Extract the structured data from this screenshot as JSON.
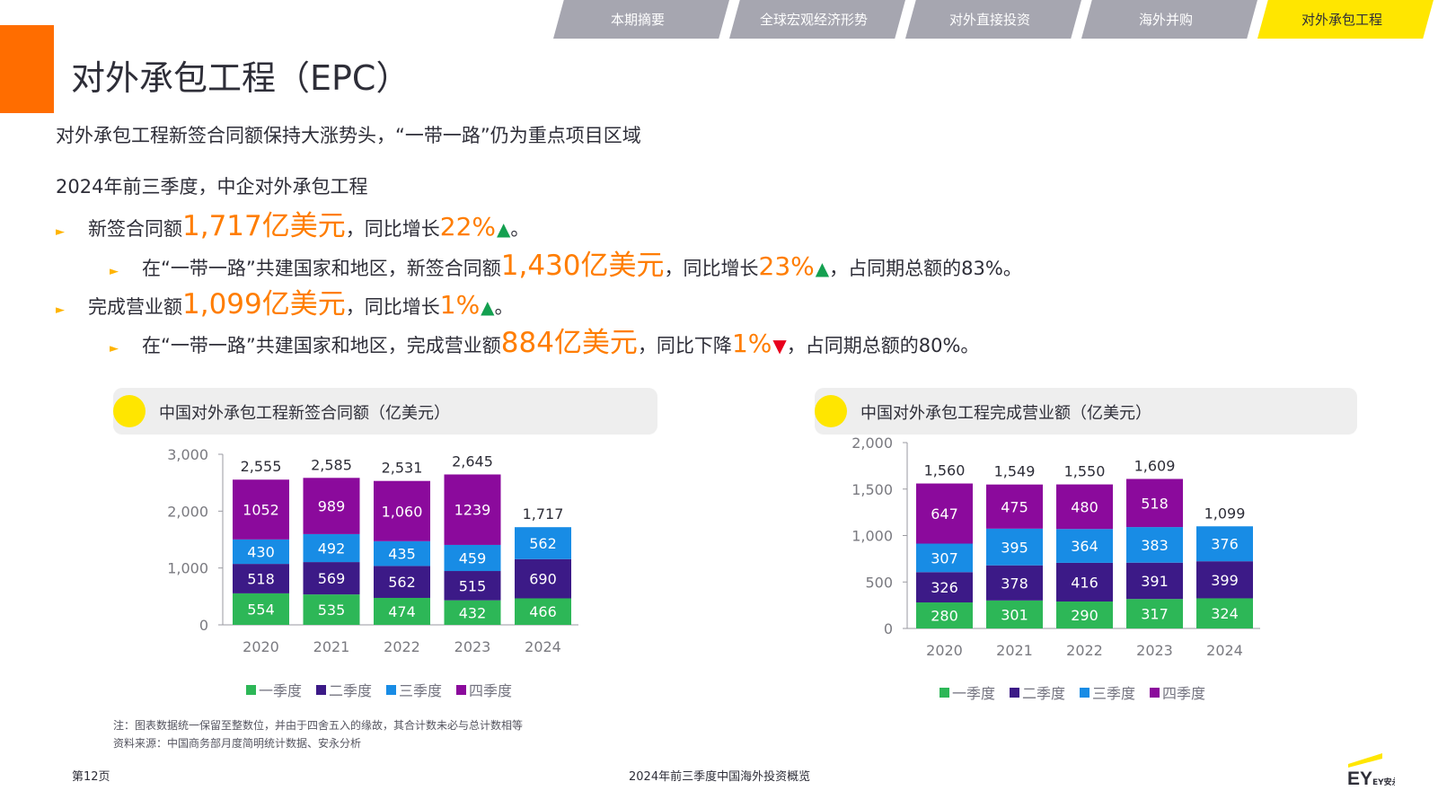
{
  "nav": {
    "tabs": [
      {
        "label": "本期摘要",
        "active": false
      },
      {
        "label": "全球宏观经济形势",
        "active": false
      },
      {
        "label": "对外直接投资",
        "active": false
      },
      {
        "label": "海外并购",
        "active": false
      },
      {
        "label": "对外承包工程",
        "active": true
      }
    ]
  },
  "page": {
    "title": "对外承包工程（EPC）",
    "headline": "对外承包工程新签合同额保持大涨势头，“一带一路”仍为重点项目区域",
    "intro": "2024年前三季度，中企对外承包工程"
  },
  "bullets": [
    {
      "mark": "►",
      "t1": "新签合同额",
      "big": "1,717",
      "unit": "亿美元",
      "t2": "，同比增长",
      "pct": "22%",
      "arrow": "▲",
      "t3": "。"
    },
    {
      "mark": "►",
      "t1": "在“一带一路”共建国家和地区，新签合同额",
      "big": "1,430",
      "unit": "亿美元",
      "t2": "，同比增长",
      "pct": "23%",
      "arrow": "▲",
      "t3": "，占同期总额的83%。"
    },
    {
      "mark": "►",
      "t1": "完成营业额",
      "big": "1,099",
      "unit": "亿美元",
      "t2": "，同比增长",
      "pct": "1%",
      "arrow": "▲",
      "t3": "。"
    },
    {
      "mark": "►",
      "t1": "在“一带一路”共建国家和地区，完成营业额",
      "big": "884",
      "unit": "亿美元",
      "t2": "，同比下降",
      "pct": "1%",
      "arrow": "▼",
      "t3": "，占同期总额的80%。"
    }
  ],
  "colors": {
    "q1": "#2db757",
    "q2": "#3c1a87",
    "q3": "#188ce5",
    "q4": "#8b0a9c",
    "accent_orange": "#ff7d00",
    "ey_yellow": "#ffe600"
  },
  "chart_data": [
    {
      "type": "bar",
      "stacked": true,
      "title": "中国对外承包工程新签合同额（亿美元）",
      "categories": [
        "2020",
        "2021",
        "2022",
        "2023",
        "2024"
      ],
      "series": [
        {
          "name": "一季度",
          "values": [
            554,
            535,
            474,
            432,
            466
          ],
          "labels": [
            "554",
            "535",
            "474",
            "432",
            "466"
          ]
        },
        {
          "name": "二季度",
          "values": [
            518,
            569,
            562,
            515,
            690
          ],
          "labels": [
            "518",
            "569",
            "562",
            "515",
            "690"
          ]
        },
        {
          "name": "三季度",
          "values": [
            430,
            492,
            435,
            459,
            562
          ],
          "labels": [
            "430",
            "492",
            "435",
            "459",
            "562"
          ]
        },
        {
          "name": "四季度",
          "values": [
            1052,
            989,
            1060,
            1239,
            null
          ],
          "labels": [
            "1052",
            "989",
            "1,060",
            "1239",
            ""
          ]
        }
      ],
      "totals": [
        "2,555",
        "2,585",
        "2,531",
        "2,645",
        "1,717"
      ],
      "ylim": [
        0,
        3000
      ],
      "yticks": [
        "0",
        "1,000",
        "2,000",
        "3,000"
      ],
      "legend_position": "bottom",
      "grid": false
    },
    {
      "type": "bar",
      "stacked": true,
      "title": "中国对外承包工程完成营业额（亿美元）",
      "categories": [
        "2020",
        "2021",
        "2022",
        "2023",
        "2024"
      ],
      "series": [
        {
          "name": "一季度",
          "values": [
            280,
            301,
            290,
            317,
            324
          ],
          "labels": [
            "280",
            "301",
            "290",
            "317",
            "324"
          ]
        },
        {
          "name": "二季度",
          "values": [
            326,
            378,
            416,
            391,
            399
          ],
          "labels": [
            "326",
            "378",
            "416",
            "391",
            "399"
          ]
        },
        {
          "name": "三季度",
          "values": [
            307,
            395,
            364,
            383,
            376
          ],
          "labels": [
            "307",
            "395",
            "364",
            "383",
            "376"
          ]
        },
        {
          "name": "四季度",
          "values": [
            647,
            475,
            480,
            518,
            null
          ],
          "labels": [
            "647",
            "475",
            "480",
            "518",
            ""
          ]
        }
      ],
      "totals": [
        "1,560",
        "1,549",
        "1,550",
        "1,609",
        "1,099"
      ],
      "ylim": [
        0,
        2000
      ],
      "yticks": [
        "0",
        "500",
        "1,000",
        "1,500",
        "2,000"
      ],
      "legend_position": "bottom",
      "grid": false
    }
  ],
  "notes": {
    "note1": "注：图表数据统一保留至整数位，并由于四舍五入的缘故，其合计数未必与总计数相等",
    "note2": "资料来源：中国商务部月度简明统计数据、安永分析"
  },
  "footer": {
    "page": "第12页",
    "center": "2024年前三季度中国海外投资概览",
    "logo": "EY安永",
    "logo_icon": "ey-logo-icon"
  }
}
